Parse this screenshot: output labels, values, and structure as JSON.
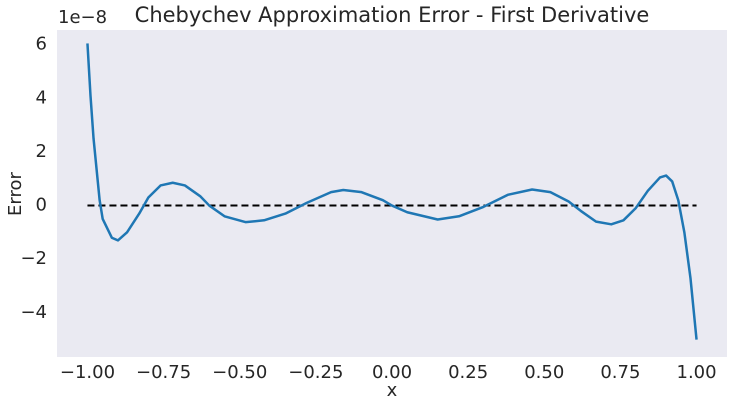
{
  "chart_data": {
    "type": "line",
    "title": "Chebychev Approximation Error - First Derivative",
    "xlabel": "x",
    "ylabel": "Error",
    "offset_label": "1e−8",
    "x": [
      -1,
      -0.99,
      -0.98,
      -0.96,
      -0.95,
      -0.92,
      -0.9,
      -0.87,
      -0.83,
      -0.8,
      -0.76,
      -0.72,
      -0.68,
      -0.63,
      -0.6,
      -0.55,
      -0.48,
      -0.42,
      -0.35,
      -0.28,
      -0.2,
      -0.16,
      -0.1,
      -0.03,
      0,
      0.05,
      0.15,
      0.22,
      0.3,
      0.38,
      0.46,
      0.52,
      0.58,
      0.62,
      0.67,
      0.72,
      0.76,
      0.8,
      0.84,
      0.88,
      0.9,
      0.92,
      0.94,
      0.96,
      0.98,
      1
    ],
    "series": [
      {
        "name": "error",
        "color": "#1f77b4",
        "values": [
          6.05,
          4.1,
          2.5,
          0.2,
          -0.5,
          -1.2,
          -1.3,
          -1.0,
          -0.3,
          0.3,
          0.75,
          0.85,
          0.75,
          0.35,
          0,
          -0.4,
          -0.62,
          -0.55,
          -0.3,
          0.1,
          0.5,
          0.58,
          0.5,
          0.2,
          0,
          -0.25,
          -0.52,
          -0.4,
          -0.05,
          0.4,
          0.6,
          0.5,
          0.15,
          -0.2,
          -0.6,
          -0.7,
          -0.55,
          -0.1,
          0.55,
          1.05,
          1.12,
          0.9,
          0.2,
          -1.0,
          -2.7,
          -5.0
        ]
      }
    ],
    "hline": {
      "value": 0,
      "xmin": -1,
      "xmax": 1,
      "color": "#000000"
    },
    "xlim": [
      -1.1,
      1.1
    ],
    "ylim": [
      -5.65,
      6.55
    ],
    "xticks": [
      {
        "value": -1,
        "label": "−1.00"
      },
      {
        "value": -0.75,
        "label": "−0.75"
      },
      {
        "value": -0.5,
        "label": "−0.50"
      },
      {
        "value": -0.25,
        "label": "−0.25"
      },
      {
        "value": 0,
        "label": "0.00"
      },
      {
        "value": 0.25,
        "label": "0.25"
      },
      {
        "value": 0.5,
        "label": "0.50"
      },
      {
        "value": 0.75,
        "label": "0.75"
      },
      {
        "value": 1,
        "label": "1.00"
      }
    ],
    "yticks": [
      {
        "value": -4,
        "label": "−4"
      },
      {
        "value": -2,
        "label": "−2"
      },
      0,
      2,
      4,
      6
    ],
    "grid": false,
    "background": "#eaeaf2"
  }
}
